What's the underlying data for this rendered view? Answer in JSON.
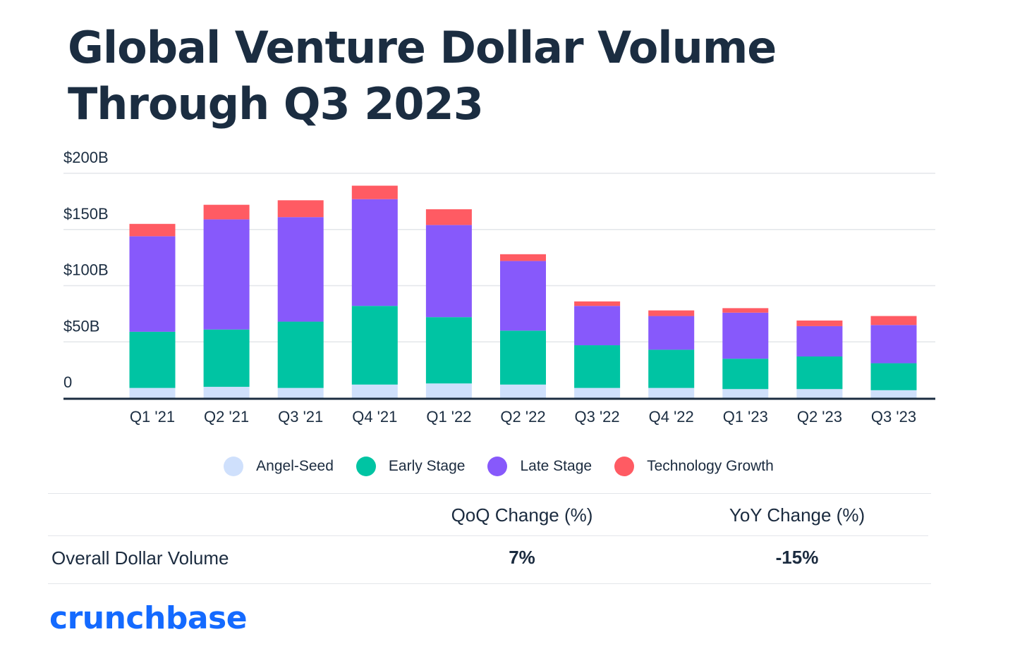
{
  "title": "Global Venture Dollar Volume Through Q3 2023",
  "chart_data": {
    "type": "bar",
    "stacked": true,
    "categories": [
      "Q1 '21",
      "Q2 '21",
      "Q3 '21",
      "Q4 '21",
      "Q1 '22",
      "Q2 '22",
      "Q3 '22",
      "Q4 '22",
      "Q1 '23",
      "Q2 '23",
      "Q3 '23"
    ],
    "series": [
      {
        "name": "Angel-Seed",
        "color": "#cfe0fc",
        "values": [
          9,
          10,
          9,
          12,
          13,
          12,
          9,
          9,
          8,
          8,
          7
        ]
      },
      {
        "name": "Early Stage",
        "color": "#00c4a3",
        "values": [
          50,
          51,
          59,
          70,
          59,
          48,
          38,
          34,
          27,
          29,
          24
        ]
      },
      {
        "name": "Late Stage",
        "color": "#8759fb",
        "values": [
          85,
          98,
          93,
          95,
          82,
          62,
          35,
          30,
          41,
          27,
          34
        ]
      },
      {
        "name": "Technology Growth",
        "color": "#ff5b63",
        "values": [
          11,
          13,
          15,
          12,
          14,
          6,
          4,
          5,
          4,
          5,
          8
        ]
      }
    ],
    "ylim": [
      0,
      200
    ],
    "yticks": [
      0,
      50,
      100,
      150,
      200
    ],
    "ytick_labels": [
      "0",
      "$50B",
      "$100B",
      "$150B",
      "$200B"
    ],
    "grid": true,
    "legend": "bottom"
  },
  "table": {
    "headers": [
      "QoQ Change (%)",
      "YoY Change (%)"
    ],
    "row_label": "Overall Dollar Volume",
    "values": [
      "7%",
      "-15%"
    ]
  },
  "logo": "crunchbase",
  "colors": {
    "title": "#1b2d41",
    "axis": "#1b2d41",
    "grid": "#e3e6ea",
    "logo": "#146aff"
  }
}
